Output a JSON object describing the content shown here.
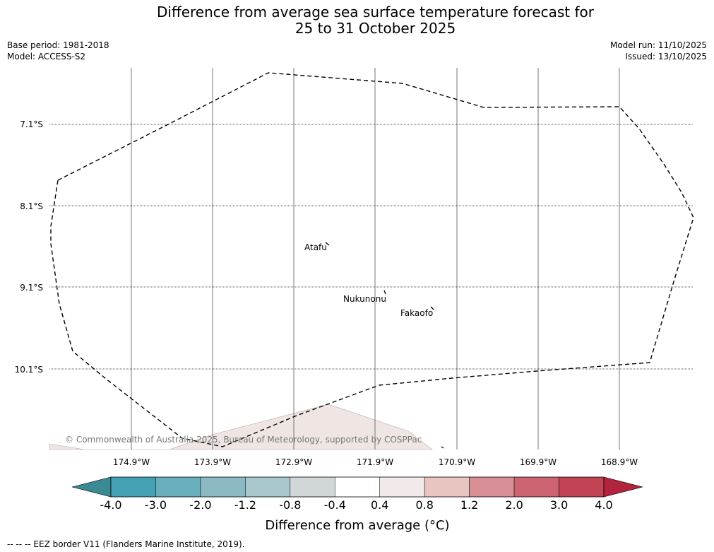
{
  "title": {
    "line1": "Difference from average sea surface temperature forecast for",
    "line2": "25 to 31 October 2025"
  },
  "meta": {
    "base_period": "Base period: 1981-2018",
    "model": "Model: ACCESS-S2",
    "model_run": "Model run: 11/10/2025",
    "issued": "Issued: 13/10/2025"
  },
  "map": {
    "latitudes": [
      "7.1°S",
      "8.1°S",
      "9.1°S",
      "10.1°S"
    ],
    "longitudes": [
      "174.9°W",
      "173.9°W",
      "172.9°W",
      "171.9°W",
      "170.9°W",
      "169.9°W",
      "168.9°W"
    ],
    "places": [
      {
        "name": "Atafu"
      },
      {
        "name": "Nukunonu"
      },
      {
        "name": "Fakaofo"
      }
    ],
    "copyright": "© Commonwealth of Australia 2025, Bureau of Meteorology, supported by COSPPac",
    "colors": {
      "eez_border": "#000000",
      "land": "#efe6e4",
      "gridline": "#555555"
    }
  },
  "colorbar": {
    "ticks": [
      "-4.0",
      "-3.0",
      "-2.0",
      "-1.2",
      "-0.8",
      "-0.4",
      "0.4",
      "0.8",
      "1.2",
      "2.0",
      "3.0",
      "4.0"
    ],
    "colors": [
      "#45a2b4",
      "#6aafbe",
      "#8bbac4",
      "#a9c8ce",
      "#d1d7d9",
      "#ffffff",
      "#f2e9e9",
      "#e9c5c2",
      "#d88e95",
      "#cc6471",
      "#c24454"
    ],
    "under_color": "#3a8a94",
    "over_color": "#b2233d",
    "label": "Difference from average (°C)"
  },
  "footnote": "--  --  -- EEZ border V11 (Flanders Marine Institute, 2019)."
}
